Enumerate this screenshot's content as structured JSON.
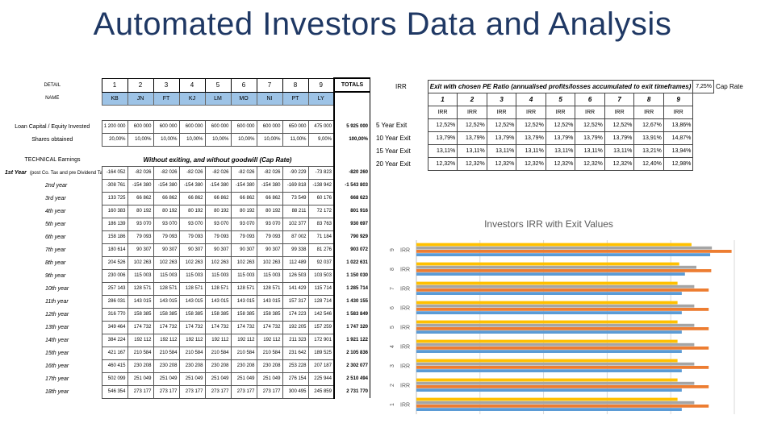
{
  "title": "Automated Investors Data and Analysis",
  "left_table": {
    "detail_label": "DETAIL",
    "name_label": "NAME",
    "totals_label": "TOTALS",
    "indices": [
      "1",
      "2",
      "3",
      "4",
      "5",
      "6",
      "7",
      "8",
      "9"
    ],
    "names": [
      "KB",
      "JN",
      "FT",
      "KJ",
      "LM",
      "MO",
      "NI",
      "PT",
      "LY"
    ],
    "loan": {
      "label": "Loan Capital / Equity Invested",
      "values": [
        "1 200 000",
        "600 000",
        "600 000",
        "600 000",
        "600 000",
        "600 000",
        "600 000",
        "650 000",
        "475 000"
      ],
      "total": "5 925 000"
    },
    "shares": {
      "label": "Shares obtained",
      "values": [
        "20,00%",
        "10,00%",
        "10,00%",
        "10,00%",
        "10,00%",
        "10,00%",
        "10,00%",
        "11,00%",
        "9,00%"
      ],
      "total": "100,00%"
    },
    "technical_label": "TECHNICAL Earnings",
    "banner": "Without exiting, and without goodwill (Cap Rate)",
    "first_year_label": "1st Year",
    "first_year_note": "(post Co. Tax and pre Dividend Tax)",
    "rows": [
      {
        "label": "",
        "values": [
          "-164 052",
          "-82 026",
          "-82 026",
          "-82 026",
          "-82 026",
          "-82 026",
          "-82 026",
          "-90 229",
          "-73 823"
        ],
        "total": "-820 260"
      },
      {
        "label": "2nd year",
        "values": [
          "-308 761",
          "-154 380",
          "-154 380",
          "-154 380",
          "-154 380",
          "-154 380",
          "-154 380",
          "-169 818",
          "-138 942"
        ],
        "total": "-1 543 803"
      },
      {
        "label": "3rd year",
        "values": [
          "133 725",
          "66 862",
          "66 862",
          "66 862",
          "66 862",
          "66 862",
          "66 862",
          "73 549",
          "60 176"
        ],
        "total": "668 623"
      },
      {
        "label": "4th year",
        "values": [
          "160 383",
          "80 192",
          "80 192",
          "80 192",
          "80 192",
          "80 192",
          "80 192",
          "88 211",
          "72 172"
        ],
        "total": "801 916"
      },
      {
        "label": "5th year",
        "values": [
          "186 139",
          "93 070",
          "93 070",
          "93 070",
          "93 070",
          "93 070",
          "93 070",
          "102 377",
          "83 763"
        ],
        "total": "930 697"
      },
      {
        "label": "6th year",
        "values": [
          "158 186",
          "79 093",
          "79 093",
          "79 093",
          "79 093",
          "79 093",
          "79 093",
          "87 002",
          "71 184"
        ],
        "total": "790 929"
      },
      {
        "label": "7th year",
        "values": [
          "180 614",
          "90 307",
          "90 307",
          "90 307",
          "90 307",
          "90 307",
          "90 307",
          "99 338",
          "81 276"
        ],
        "total": "903 072"
      },
      {
        "label": "8th year",
        "values": [
          "204 526",
          "102 263",
          "102 263",
          "102 263",
          "102 263",
          "102 263",
          "102 263",
          "112 489",
          "92 037"
        ],
        "total": "1 022 631"
      },
      {
        "label": "9th year",
        "values": [
          "230 006",
          "115 003",
          "115 003",
          "115 003",
          "115 003",
          "115 003",
          "115 003",
          "126 503",
          "103 503"
        ],
        "total": "1 150 030"
      },
      {
        "label": "10th year",
        "values": [
          "257 143",
          "128 571",
          "128 571",
          "128 571",
          "128 571",
          "128 571",
          "128 571",
          "141 429",
          "115 714"
        ],
        "total": "1 285 714"
      },
      {
        "label": "11th year",
        "values": [
          "286 031",
          "143 015",
          "143 015",
          "143 015",
          "143 015",
          "143 015",
          "143 015",
          "157 317",
          "128 714"
        ],
        "total": "1 430 155"
      },
      {
        "label": "12th year",
        "values": [
          "316 770",
          "158 385",
          "158 385",
          "158 385",
          "158 385",
          "158 385",
          "158 385",
          "174 223",
          "142 546"
        ],
        "total": "1 583 849"
      },
      {
        "label": "13th year",
        "values": [
          "349 464",
          "174 732",
          "174 732",
          "174 732",
          "174 732",
          "174 732",
          "174 732",
          "192 205",
          "157 259"
        ],
        "total": "1 747 320"
      },
      {
        "label": "14th year",
        "values": [
          "384 224",
          "192 112",
          "192 112",
          "192 112",
          "192 112",
          "192 112",
          "192 112",
          "211 323",
          "172 901"
        ],
        "total": "1 921 122"
      },
      {
        "label": "15th year",
        "values": [
          "421 167",
          "210 584",
          "210 584",
          "210 584",
          "210 584",
          "210 584",
          "210 584",
          "231 642",
          "189 525"
        ],
        "total": "2 105 836"
      },
      {
        "label": "16th year",
        "values": [
          "460 415",
          "230 208",
          "230 208",
          "230 208",
          "230 208",
          "230 208",
          "230 208",
          "253 228",
          "207 187"
        ],
        "total": "2 302 077"
      },
      {
        "label": "17th year",
        "values": [
          "502 099",
          "251 049",
          "251 049",
          "251 049",
          "251 049",
          "251 049",
          "251 049",
          "276 154",
          "225 944"
        ],
        "total": "2 510 494"
      },
      {
        "label": "18th year",
        "values": [
          "546 354",
          "273 177",
          "273 177",
          "273 177",
          "273 177",
          "273 177",
          "273 177",
          "300 495",
          "245 859"
        ],
        "total": "2 731 770"
      }
    ]
  },
  "right_table": {
    "irr_label": "IRR",
    "header": "Exit with chosen PE Ratio (annualised profits/losses accumulated to exit timeframes)",
    "cap_rate_value": "7,25%",
    "cap_rate_label": "Cap Rate",
    "indices": [
      "1",
      "2",
      "3",
      "4",
      "5",
      "6",
      "7",
      "8",
      "9"
    ],
    "col_label": "IRR",
    "rows": [
      {
        "label": "5 Year Exit",
        "values": [
          "12,52%",
          "12,52%",
          "12,52%",
          "12,52%",
          "12,52%",
          "12,52%",
          "12,52%",
          "12,67%",
          "13,86%"
        ]
      },
      {
        "label": "10 Year Exit",
        "values": [
          "13,79%",
          "13,79%",
          "13,79%",
          "13,79%",
          "13,79%",
          "13,79%",
          "13,79%",
          "13,91%",
          "14,87%"
        ]
      },
      {
        "label": "15 Year Exit",
        "values": [
          "13,11%",
          "13,11%",
          "13,11%",
          "13,11%",
          "13,11%",
          "13,11%",
          "13,11%",
          "13,21%",
          "13,94%"
        ]
      },
      {
        "label": "20 Year Exit",
        "values": [
          "12,32%",
          "12,32%",
          "12,32%",
          "12,32%",
          "12,32%",
          "12,32%",
          "12,32%",
          "12,40%",
          "12,98%"
        ]
      }
    ]
  },
  "chart_data": {
    "type": "bar",
    "orientation": "horizontal",
    "title": "Investors IRR with Exit Values",
    "categories": [
      "1 IRR",
      "2 IRR",
      "3 IRR",
      "4 IRR",
      "5 IRR",
      "6 IRR",
      "7 IRR",
      "8 IRR",
      "9 IRR"
    ],
    "series": [
      {
        "values": [
          12.52,
          12.52,
          12.52,
          12.52,
          12.52,
          12.52,
          12.52,
          12.67,
          13.86
        ],
        "color": "#5b9bd5"
      },
      {
        "values": [
          13.79,
          13.79,
          13.79,
          13.79,
          13.79,
          13.79,
          13.79,
          13.91,
          14.87
        ],
        "color": "#ed7d31"
      },
      {
        "values": [
          13.11,
          13.11,
          13.11,
          13.11,
          13.11,
          13.11,
          13.11,
          13.21,
          13.94
        ],
        "color": "#a5a5a5"
      },
      {
        "values": [
          12.32,
          12.32,
          12.32,
          12.32,
          12.32,
          12.32,
          12.32,
          12.4,
          12.98
        ],
        "color": "#ffc000"
      }
    ],
    "xlim": [
      0,
      15
    ],
    "grid": true,
    "legend": "none"
  }
}
